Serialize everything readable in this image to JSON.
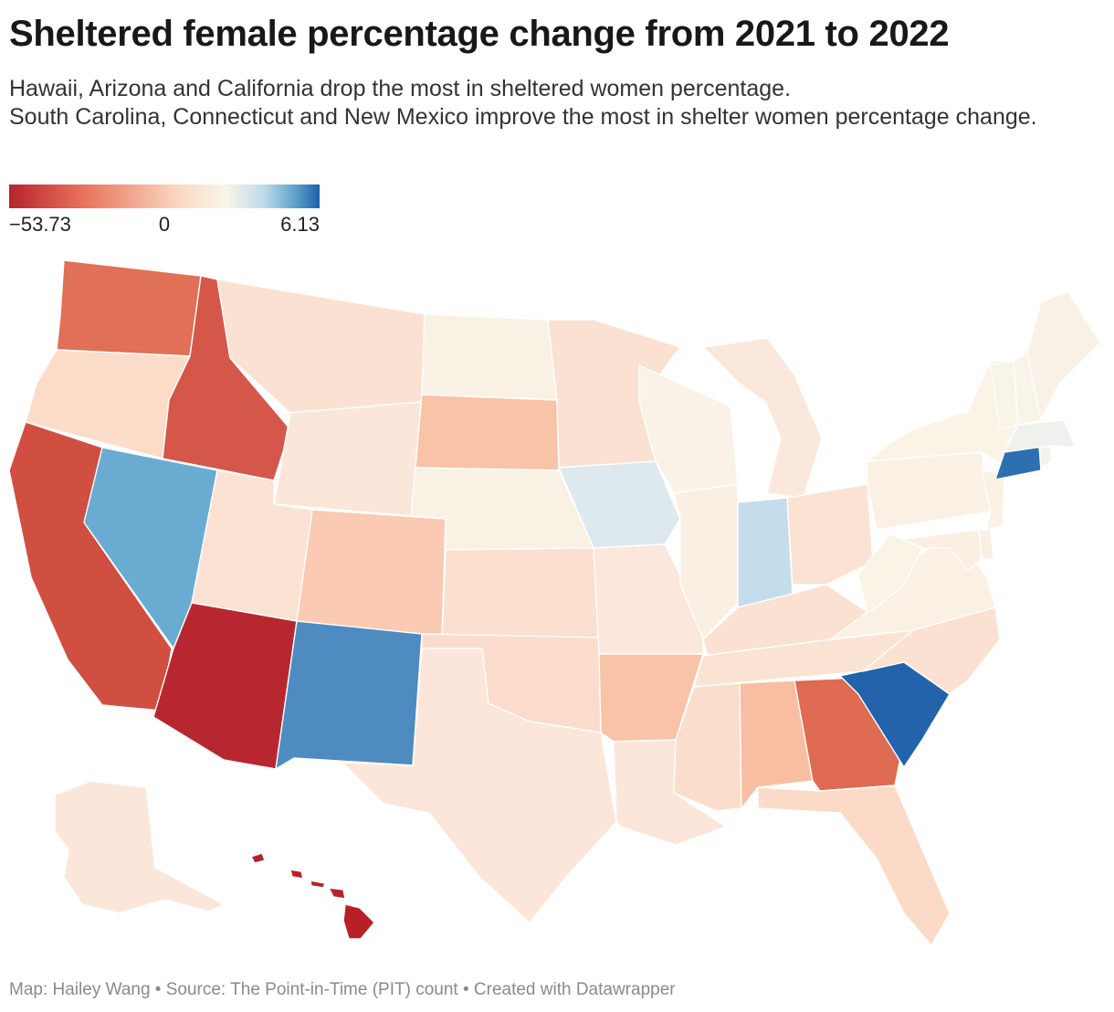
{
  "header": {
    "title": "Sheltered female percentage change from 2021 to 2022",
    "subtitle_line1": "Hawaii, Arizona and California drop the most in sheltered women percentage.",
    "subtitle_line2": "South Carolina, Connecticut and New Mexico improve the most in shelter women percentage change."
  },
  "legend": {
    "min_label": "−53.73",
    "mid_label": "0",
    "max_label": "6.13",
    "min_value": -53.73,
    "max_value": 6.13,
    "gradient_colors": [
      "#b8232e",
      "#e9735a",
      "#fbd9c2",
      "#f8f5ea",
      "#bfdbea",
      "#5ea3cd",
      "#1f60aa"
    ]
  },
  "map_data": {
    "type": "choropleth",
    "region": "United States",
    "states": [
      {
        "code": "WA",
        "color": "#e07056"
      },
      {
        "code": "OR",
        "color": "#fbdcc8"
      },
      {
        "code": "CA",
        "color": "#d04f40"
      },
      {
        "code": "ID",
        "color": "#d5574a"
      },
      {
        "code": "NV",
        "color": "#6aabd1"
      },
      {
        "code": "MT",
        "color": "#fbe1d1"
      },
      {
        "code": "WY",
        "color": "#fbe7da"
      },
      {
        "code": "UT",
        "color": "#fbe2d3"
      },
      {
        "code": "AZ",
        "color": "#b8272f"
      },
      {
        "code": "CO",
        "color": "#facbb2"
      },
      {
        "code": "NM",
        "color": "#4d8bc1"
      },
      {
        "code": "ND",
        "color": "#faf1e5"
      },
      {
        "code": "SD",
        "color": "#f9c3a7"
      },
      {
        "code": "NE",
        "color": "#faf1e5"
      },
      {
        "code": "KS",
        "color": "#fbdfcf"
      },
      {
        "code": "OK",
        "color": "#fbdccc"
      },
      {
        "code": "TX",
        "color": "#fbe6d9"
      },
      {
        "code": "MN",
        "color": "#fbe1d2"
      },
      {
        "code": "IA",
        "color": "#dde9ef"
      },
      {
        "code": "MO",
        "color": "#fbe7dc"
      },
      {
        "code": "AR",
        "color": "#f9c3a7"
      },
      {
        "code": "LA",
        "color": "#fbe6d9"
      },
      {
        "code": "WI",
        "color": "#faf2e6"
      },
      {
        "code": "IL",
        "color": "#faefe3"
      },
      {
        "code": "MI",
        "color": "#fbe8dc"
      },
      {
        "code": "IN",
        "color": "#c5dceb"
      },
      {
        "code": "OH",
        "color": "#fbe2d3"
      },
      {
        "code": "KY",
        "color": "#fbe1d2"
      },
      {
        "code": "TN",
        "color": "#fbe3d4"
      },
      {
        "code": "MS",
        "color": "#fbddcc"
      },
      {
        "code": "AL",
        "color": "#f9bea1"
      },
      {
        "code": "GA",
        "color": "#de6b52"
      },
      {
        "code": "FL",
        "color": "#fbdbc7"
      },
      {
        "code": "SC",
        "color": "#2263ab"
      },
      {
        "code": "NC",
        "color": "#fbe1d1"
      },
      {
        "code": "VA",
        "color": "#faf0e4"
      },
      {
        "code": "WV",
        "color": "#faf3e6"
      },
      {
        "code": "PA",
        "color": "#faf1e4"
      },
      {
        "code": "NY",
        "color": "#faf3e6"
      },
      {
        "code": "NJ",
        "color": "#faf0e4"
      },
      {
        "code": "DE",
        "color": "#faefe3"
      },
      {
        "code": "MD",
        "color": "#faefe2"
      },
      {
        "code": "CT",
        "color": "#2e6fb0"
      },
      {
        "code": "RI",
        "color": "#f3f3ec"
      },
      {
        "code": "MA",
        "color": "#eef1ec"
      },
      {
        "code": "VT",
        "color": "#f8f4e6"
      },
      {
        "code": "NH",
        "color": "#f9f4e8"
      },
      {
        "code": "ME",
        "color": "#faf1e6"
      },
      {
        "code": "AK",
        "color": "#fbe7da"
      },
      {
        "code": "HI",
        "color": "#b82028"
      }
    ]
  },
  "footer": {
    "credit": "Map: Hailey Wang • Source: The Point-in-Time (PIT) count  • Created with Datawrapper"
  }
}
